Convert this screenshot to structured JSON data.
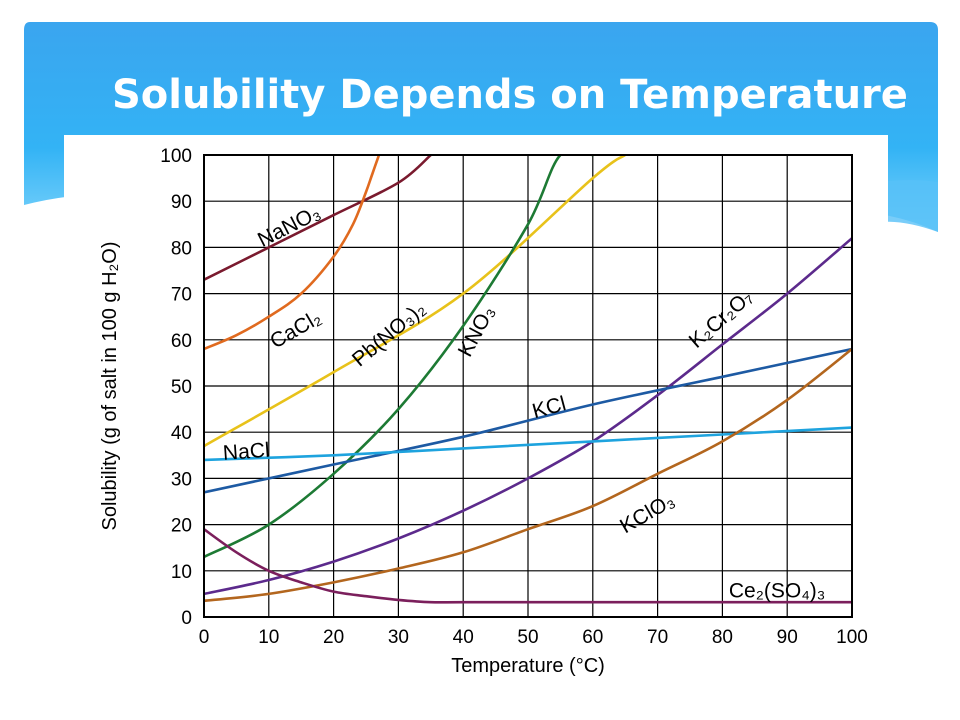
{
  "slide": {
    "title": "Solubility Depends on Temperature",
    "accent_color": "#29a3ee"
  },
  "chart_data": {
    "type": "line",
    "xlabel": "Temperature (°C)",
    "ylabel": "Solubility (g of salt in 100 g H₂O)",
    "xlim": [
      0,
      100
    ],
    "ylim": [
      0,
      100
    ],
    "x_ticks": [
      0,
      10,
      20,
      30,
      40,
      50,
      60,
      70,
      80,
      90,
      100
    ],
    "y_ticks": [
      0,
      10,
      20,
      30,
      40,
      50,
      60,
      70,
      80,
      90,
      100
    ],
    "grid": true,
    "legend": "none (curves labeled directly)",
    "series": [
      {
        "name": "NaNO₃",
        "color": "#7a1a2e",
        "x": [
          0,
          10,
          20,
          30,
          35
        ],
        "y": [
          73,
          80,
          87,
          94,
          100
        ],
        "label_x": 9,
        "label_y": 80,
        "label_angle": -27
      },
      {
        "name": "CaCl₂",
        "color": "#e06a1f",
        "x": [
          0,
          5,
          10,
          15,
          20,
          23,
          25,
          26,
          27
        ],
        "y": [
          58,
          61,
          65,
          70,
          78,
          85,
          92,
          96,
          100
        ],
        "label_x": 11,
        "label_y": 58,
        "label_angle": -30
      },
      {
        "name": "Pb(NO₃)₂",
        "color": "#e8c21a",
        "x": [
          0,
          20,
          40,
          60,
          65
        ],
        "y": [
          37,
          53,
          70,
          95,
          100
        ],
        "label_x": 24,
        "label_y": 54,
        "label_angle": -40
      },
      {
        "name": "KNO₃",
        "color": "#1d7a34",
        "x": [
          0,
          10,
          20,
          30,
          40,
          50,
          55,
          60
        ],
        "y": [
          13,
          20,
          31,
          45,
          63,
          85,
          100,
          100
        ],
        "label_x": 41,
        "label_y": 56,
        "label_angle": -62
      },
      {
        "name": "K₂Cr₂O₇",
        "color": "#5c2a8c",
        "x": [
          0,
          10,
          20,
          30,
          40,
          50,
          60,
          70,
          80,
          90,
          100
        ],
        "y": [
          5,
          8,
          12,
          17,
          23,
          30,
          38,
          48,
          59,
          70,
          82
        ],
        "label_x": 76,
        "label_y": 58,
        "label_angle": -41
      },
      {
        "name": "KCl",
        "color": "#1d5aa3",
        "x": [
          0,
          20,
          40,
          60,
          80,
          100
        ],
        "y": [
          27,
          33,
          39,
          46,
          52,
          58
        ],
        "label_x": 51,
        "label_y": 43,
        "label_angle": -15
      },
      {
        "name": "NaCl",
        "color": "#1ea3de",
        "x": [
          0,
          20,
          40,
          60,
          80,
          100
        ],
        "y": [
          34,
          35,
          36.5,
          38,
          39.5,
          41
        ],
        "label_x": 3,
        "label_y": 34,
        "label_angle": -4
      },
      {
        "name": "KClO₃",
        "color": "#b3661e",
        "x": [
          0,
          10,
          20,
          30,
          40,
          50,
          60,
          70,
          80,
          90,
          100
        ],
        "y": [
          3.5,
          5,
          7.5,
          10.5,
          14,
          19,
          24,
          31,
          38,
          47,
          58
        ],
        "label_x": 65,
        "label_y": 18,
        "label_angle": -30
      },
      {
        "name": "Ce₂(SO₄)₃",
        "color": "#7b1f5c",
        "x": [
          0,
          5,
          10,
          15,
          20,
          25,
          30,
          35,
          40,
          60,
          80,
          100
        ],
        "y": [
          19,
          14,
          10,
          7.5,
          5.5,
          4.5,
          3.7,
          3.2,
          3.2,
          3.2,
          3.2,
          3.2
        ],
        "label_x": 81,
        "label_y": 4.2,
        "label_angle": 0
      }
    ]
  }
}
